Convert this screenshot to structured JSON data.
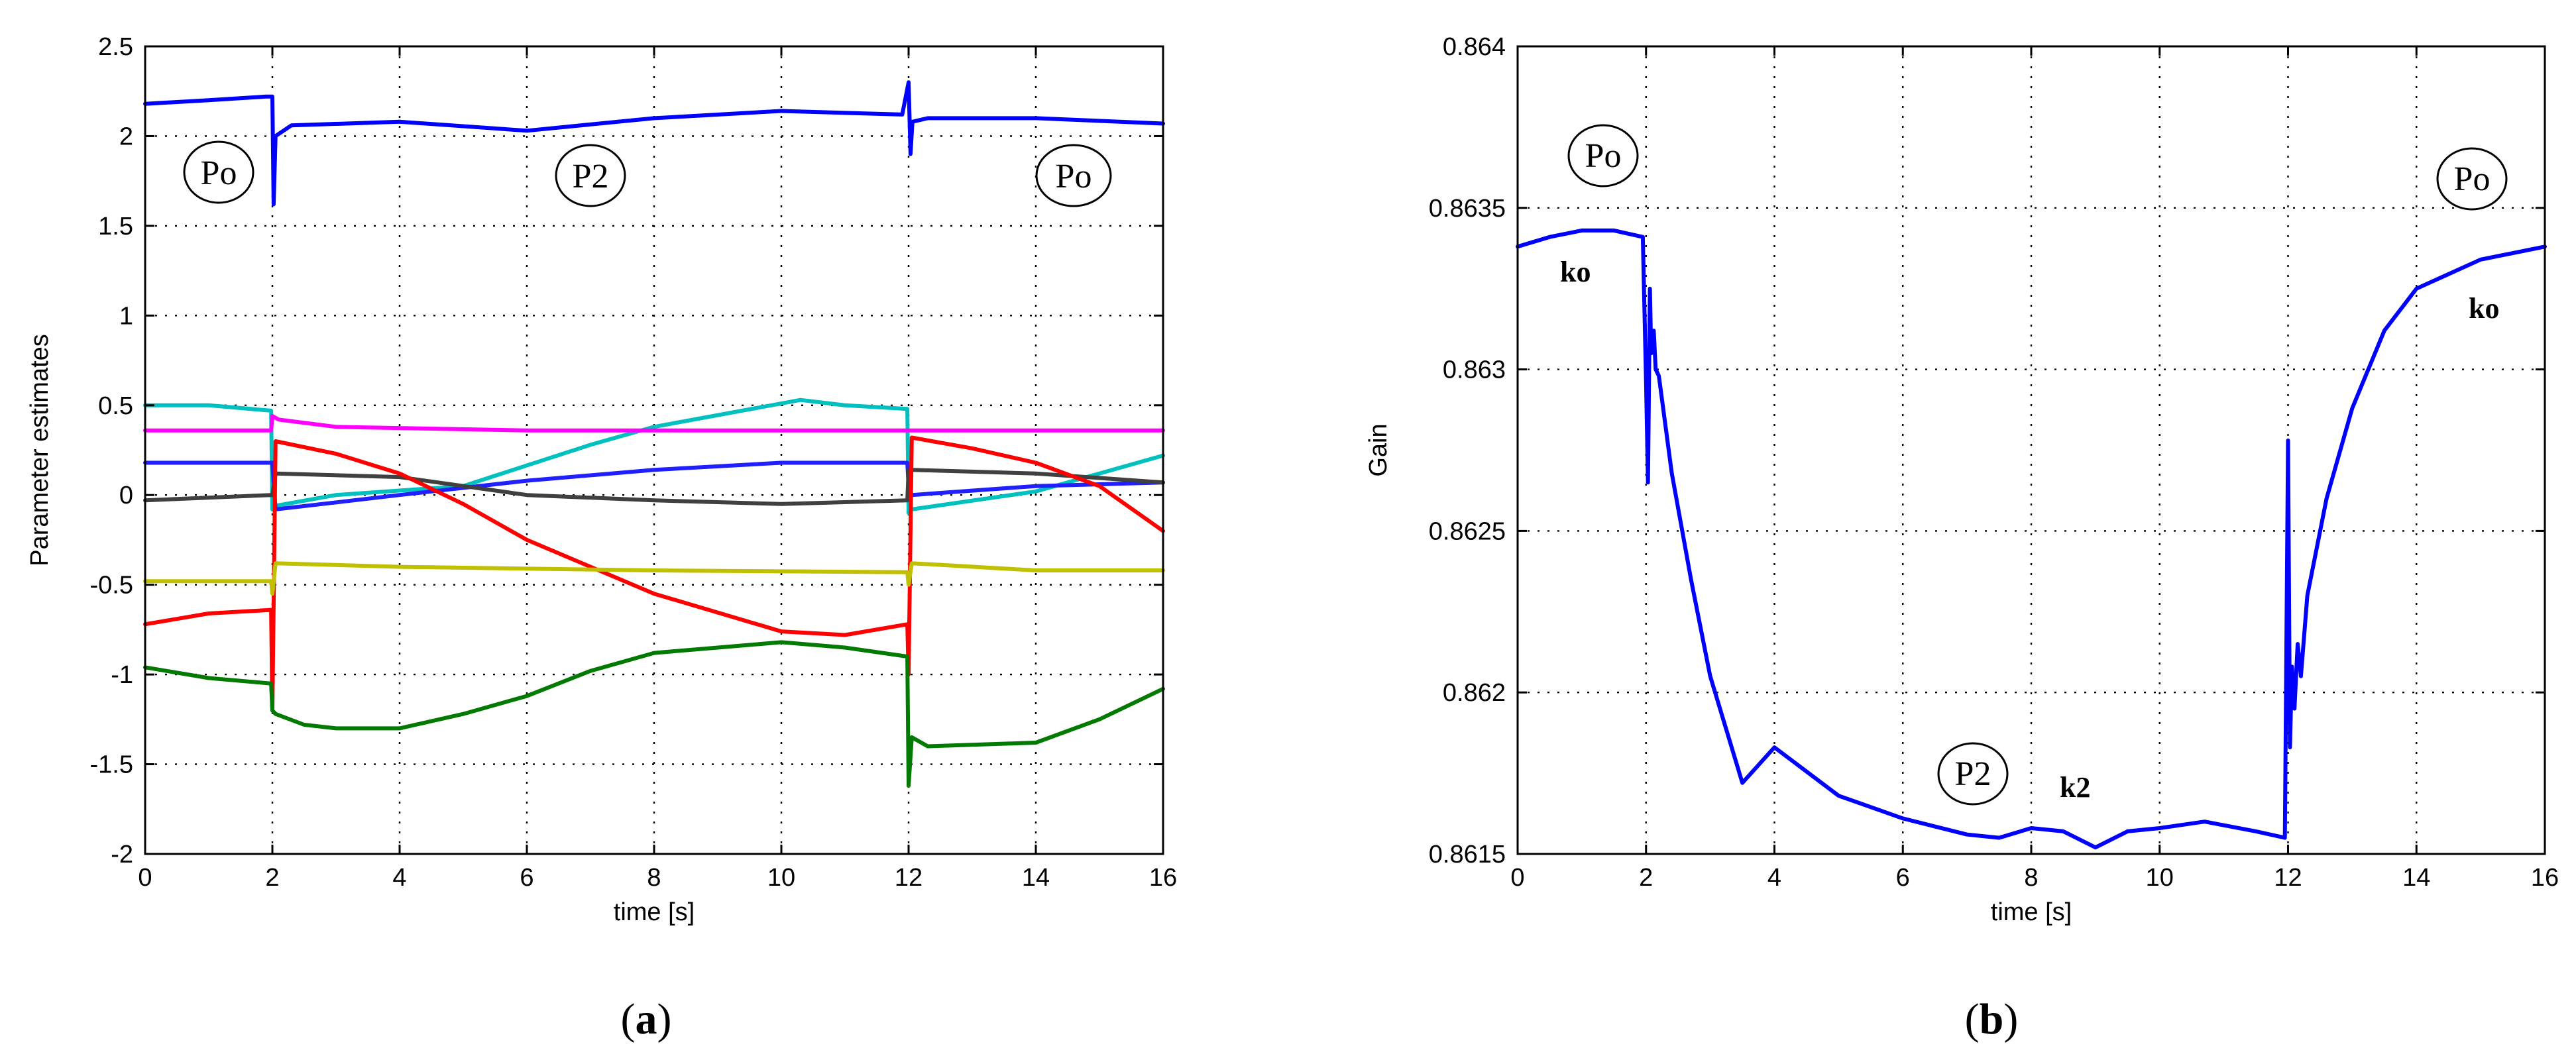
{
  "panels": [
    {
      "caption_open": "(",
      "caption_letter": "a",
      "caption_close": ")",
      "annotations": [
        "Po",
        "P2",
        "Po"
      ]
    },
    {
      "caption_open": "(",
      "caption_letter": "b",
      "caption_close": ")",
      "annotations": [
        "Po",
        "ko",
        "P2",
        "k2",
        "Po",
        "ko"
      ]
    }
  ],
  "chart_data": [
    {
      "type": "line",
      "title": "",
      "xlabel": "time [s]",
      "ylabel": "Parameter estimates",
      "xlim": [
        0,
        16
      ],
      "ylim": [
        -2,
        2.5
      ],
      "xticks": [
        0,
        2,
        4,
        6,
        8,
        10,
        12,
        14,
        16
      ],
      "yticks": [
        -2,
        -1.5,
        -1,
        -0.5,
        0,
        0.5,
        1,
        1.5,
        2,
        2.5
      ],
      "grid": true,
      "series": [
        {
          "color": "#0000ff",
          "x": [
            0,
            1,
            1.9,
            2.0,
            2.02,
            2.05,
            2.3,
            4,
            6,
            8,
            10,
            11.9,
            12.0,
            12.03,
            12.06,
            12.3,
            14,
            16
          ],
          "y": [
            2.18,
            2.2,
            2.22,
            2.22,
            1.62,
            2.0,
            2.06,
            2.08,
            2.03,
            2.1,
            2.14,
            2.12,
            2.3,
            1.9,
            2.08,
            2.1,
            2.1,
            2.07
          ]
        },
        {
          "color": "#00c0c0",
          "x": [
            0,
            1,
            1.98,
            2.0,
            2.05,
            3,
            5,
            7,
            8,
            10.3,
            11,
            11.98,
            12.0,
            12.05,
            14,
            16
          ],
          "y": [
            0.5,
            0.5,
            0.47,
            -0.08,
            -0.06,
            0.0,
            0.05,
            0.28,
            0.38,
            0.53,
            0.5,
            0.48,
            -0.1,
            -0.08,
            0.02,
            0.22
          ]
        },
        {
          "color": "#ff00ff",
          "x": [
            0,
            1.98,
            2.0,
            2.1,
            3,
            6,
            10,
            12,
            14,
            16
          ],
          "y": [
            0.36,
            0.36,
            0.44,
            0.42,
            0.38,
            0.36,
            0.36,
            0.36,
            0.36,
            0.36
          ]
        },
        {
          "color": "#1f1fff",
          "x": [
            0,
            1.98,
            2.0,
            2.05,
            4,
            6,
            8,
            10,
            11.98,
            12.0,
            12.05,
            14,
            16
          ],
          "y": [
            0.18,
            0.18,
            0.18,
            -0.08,
            0.0,
            0.08,
            0.14,
            0.18,
            0.18,
            0.05,
            0.0,
            0.05,
            0.07
          ]
        },
        {
          "color": "#404040",
          "x": [
            0,
            1.98,
            2.0,
            2.05,
            4,
            6,
            8,
            10,
            11.98,
            12.0,
            12.05,
            14,
            16
          ],
          "y": [
            -0.03,
            0.0,
            0.0,
            0.12,
            0.1,
            0.0,
            -0.03,
            -0.05,
            -0.03,
            0.14,
            0.14,
            0.12,
            0.07
          ]
        },
        {
          "color": "#ff0000",
          "x": [
            0,
            1,
            1.98,
            2.0,
            2.05,
            3,
            4,
            5,
            6,
            8,
            10,
            11,
            11.98,
            12.0,
            12.05,
            13,
            14,
            15,
            16
          ],
          "y": [
            -0.72,
            -0.66,
            -0.64,
            -1.2,
            0.3,
            0.23,
            0.12,
            -0.05,
            -0.25,
            -0.55,
            -0.76,
            -0.78,
            -0.72,
            -1.0,
            0.32,
            0.26,
            0.18,
            0.05,
            -0.2
          ]
        },
        {
          "color": "#c0c000",
          "x": [
            0,
            1.98,
            2.0,
            2.05,
            4,
            8,
            11.98,
            12.0,
            12.05,
            14,
            16
          ],
          "y": [
            -0.48,
            -0.48,
            -0.55,
            -0.38,
            -0.4,
            -0.42,
            -0.43,
            -0.5,
            -0.38,
            -0.42,
            -0.42
          ]
        },
        {
          "color": "#007a00",
          "x": [
            0,
            1,
            1.98,
            2.0,
            2.05,
            2.5,
            3,
            4,
            5,
            6,
            7,
            8,
            9,
            10,
            11,
            11.98,
            12.0,
            12.05,
            12.3,
            14,
            15,
            16
          ],
          "y": [
            -0.96,
            -1.02,
            -1.05,
            -1.2,
            -1.22,
            -1.28,
            -1.3,
            -1.3,
            -1.22,
            -1.12,
            -0.98,
            -0.88,
            -0.85,
            -0.82,
            -0.85,
            -0.9,
            -1.62,
            -1.35,
            -1.4,
            -1.38,
            -1.25,
            -1.08
          ]
        }
      ]
    },
    {
      "type": "line",
      "title": "",
      "xlabel": "time [s]",
      "ylabel": "Gain",
      "xlim": [
        0,
        16
      ],
      "ylim": [
        0.8615,
        0.864
      ],
      "xticks": [
        0,
        2,
        4,
        6,
        8,
        10,
        12,
        14,
        16
      ],
      "yticks": [
        0.8615,
        0.862,
        0.8625,
        0.863,
        0.8635,
        0.864
      ],
      "ytick_labels": [
        "0.8615",
        "0.862",
        "0.8625",
        "0.863",
        "0.8635",
        "0.864"
      ],
      "grid": true,
      "series": [
        {
          "color": "#0000ff",
          "x": [
            0,
            0.5,
            1,
            1.5,
            1.95,
            2.0,
            2.03,
            2.06,
            2.08,
            2.12,
            2.15,
            2.2,
            2.4,
            2.7,
            3,
            3.5,
            4,
            5,
            6,
            7,
            7.5,
            8,
            8.5,
            9,
            9.5,
            10,
            10.7,
            11.5,
            11.95,
            12.0,
            12.03,
            12.06,
            12.1,
            12.15,
            12.2,
            12.3,
            12.6,
            13,
            13.5,
            14,
            15,
            16
          ],
          "y": [
            0.86338,
            0.86341,
            0.86343,
            0.86343,
            0.86341,
            0.86296,
            0.86265,
            0.86325,
            0.86305,
            0.86312,
            0.863,
            0.86298,
            0.86268,
            0.86235,
            0.86205,
            0.86172,
            0.86183,
            0.86168,
            0.86161,
            0.86156,
            0.86155,
            0.86158,
            0.86157,
            0.86152,
            0.86157,
            0.86158,
            0.8616,
            0.86157,
            0.86155,
            0.86278,
            0.86183,
            0.86208,
            0.86195,
            0.86215,
            0.86205,
            0.8623,
            0.8626,
            0.86288,
            0.86312,
            0.86325,
            0.86334,
            0.86338
          ]
        }
      ]
    }
  ]
}
